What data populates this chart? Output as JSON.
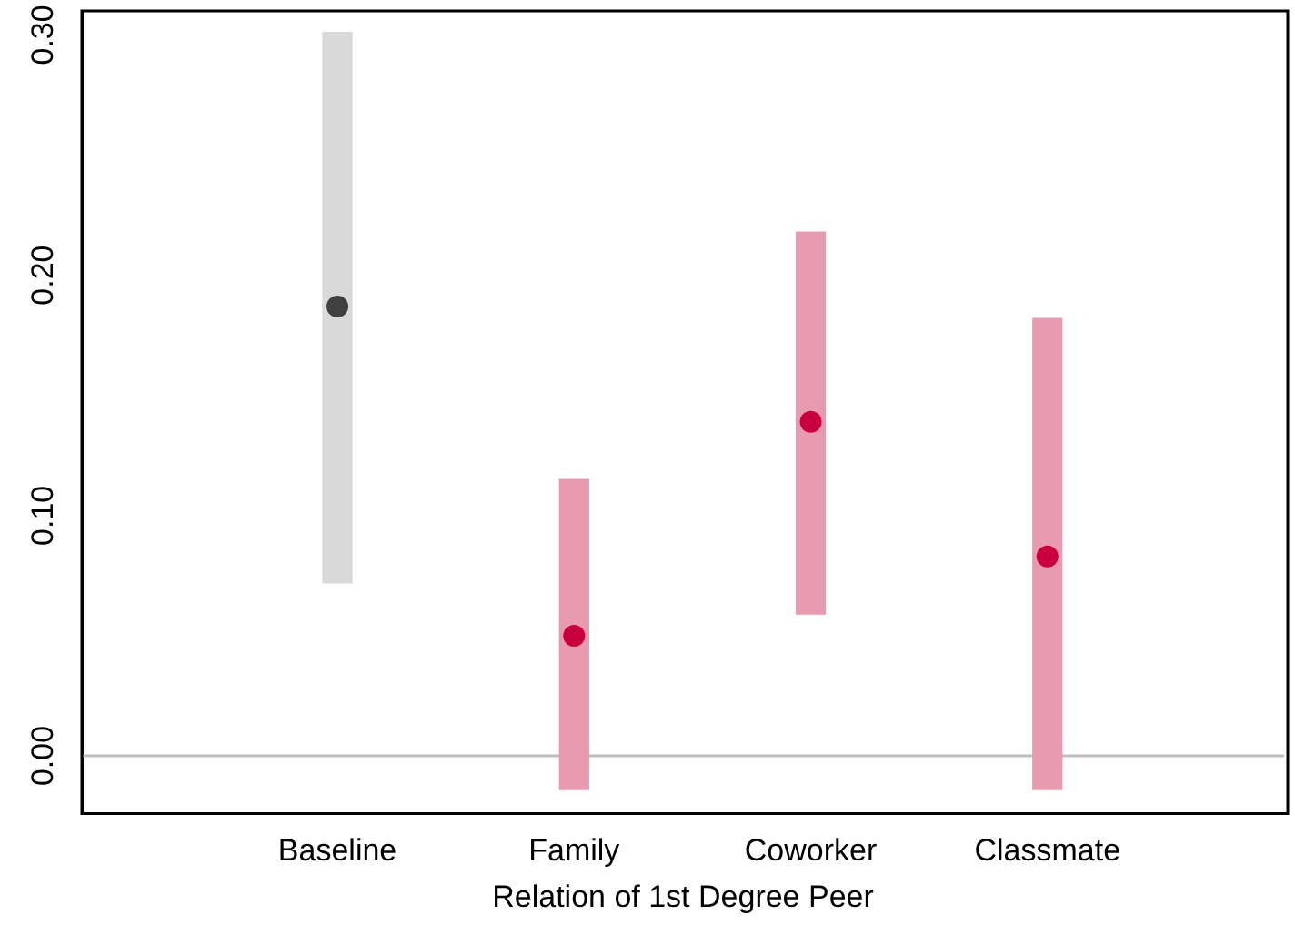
{
  "chart_data": {
    "type": "bar",
    "xlabel": "Relation of 1st Degree Peer",
    "categories": [
      "Baseline",
      "Family",
      "Coworker",
      "Classmate"
    ],
    "series": [
      {
        "type": "bar",
        "base": [
          0.072,
          -0.014,
          0.059,
          -0.014
        ],
        "values": [
          0.229,
          0.129,
          0.159,
          0.196
        ],
        "colors": [
          "#d9d9d9",
          "#e89bb0",
          "#e89bb0",
          "#e89bb0"
        ]
      },
      {
        "type": "scatter",
        "x": [
          "Baseline",
          "Family",
          "Coworker",
          "Classmate"
        ],
        "values": [
          0.187,
          0.05,
          0.139,
          0.083
        ],
        "colors": [
          "#404040",
          "#c8003c",
          "#c8003c",
          "#c8003c"
        ]
      }
    ],
    "ylim": [
      -0.024,
      0.31
    ],
    "yticks": [
      {
        "value": 0,
        "label": "0.00"
      },
      {
        "value": 0.1,
        "label": "0.10"
      },
      {
        "value": 0.2,
        "label": "0.20"
      },
      {
        "value": 0.3,
        "label": "0.30"
      }
    ],
    "ref_lines": [
      {
        "axis": "y",
        "value": 0,
        "color": "#bdbdbd"
      }
    ],
    "grid": false,
    "legend": false,
    "marker": "circle"
  }
}
